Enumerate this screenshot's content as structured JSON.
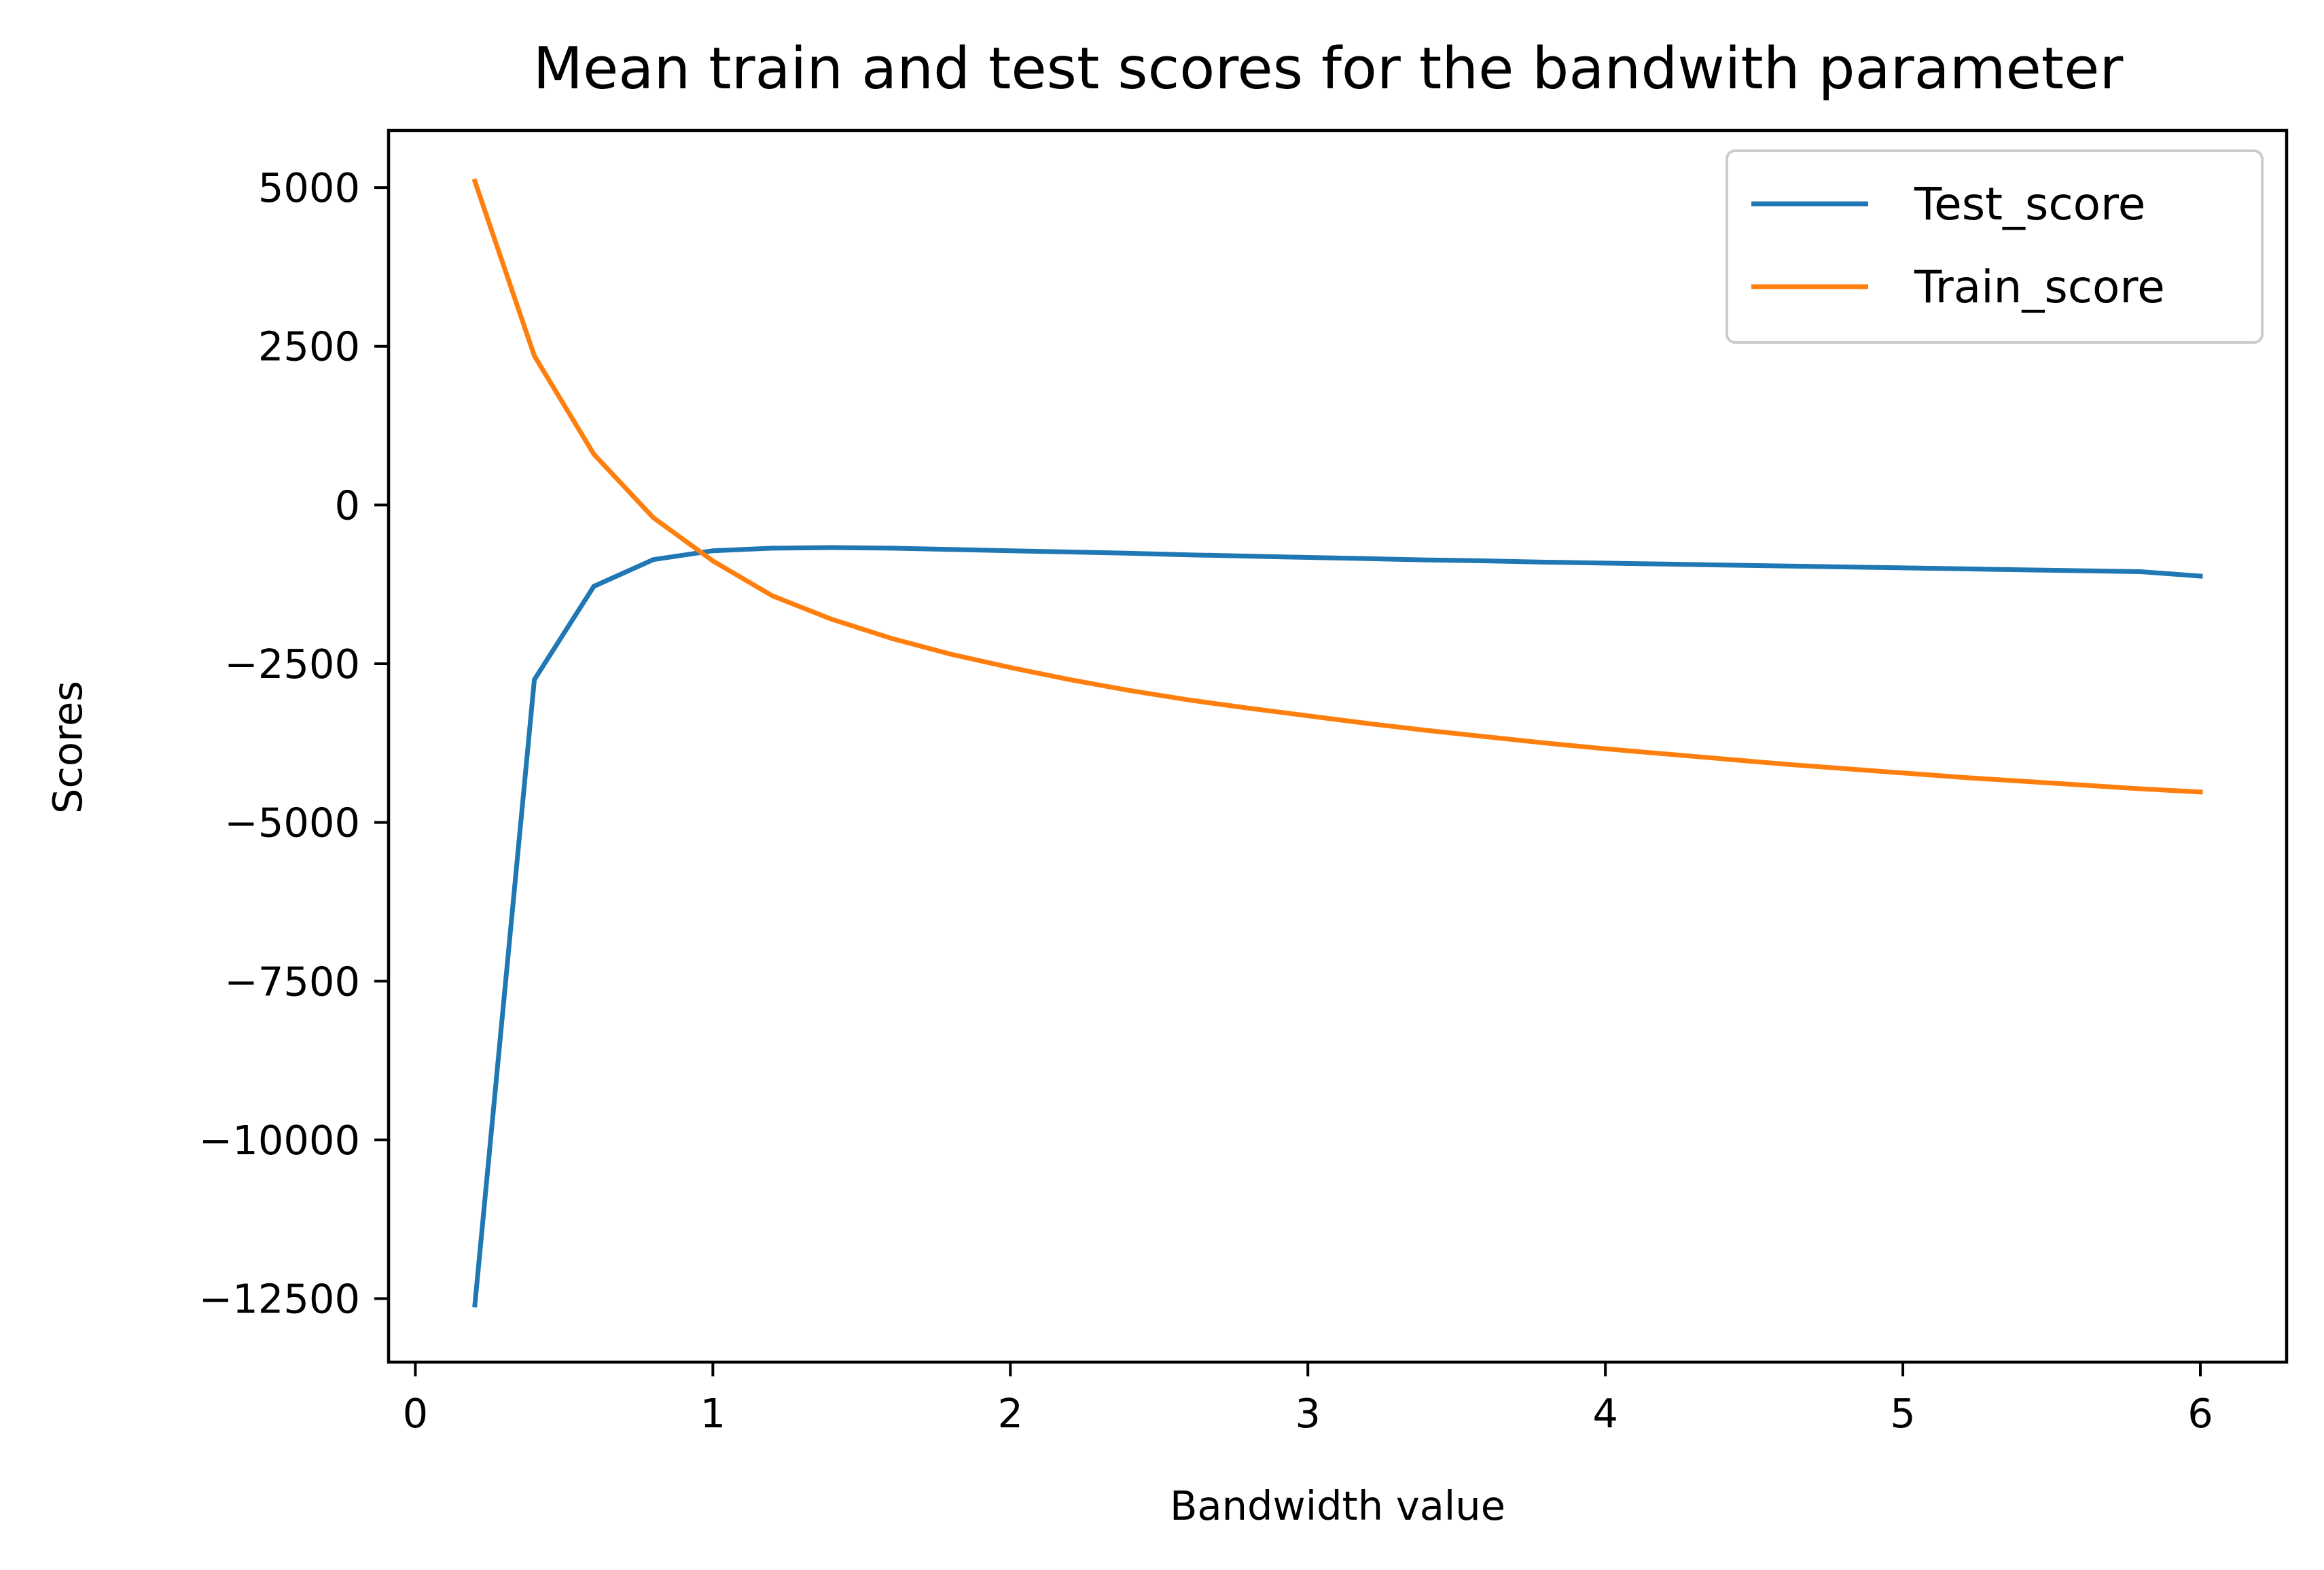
{
  "chart_data": {
    "type": "line",
    "title": "Mean train and test scores for the bandwith parameter",
    "xlabel": "Bandwidth value",
    "ylabel": "Scores",
    "xlim": [
      -0.09,
      6.29
    ],
    "ylim": [
      -13500,
      5900
    ],
    "grid": false,
    "legend_position": "top-right",
    "x": [
      0.2,
      0.4,
      0.6,
      0.8,
      1.0,
      1.2,
      1.4,
      1.6,
      1.8,
      2.0,
      2.2,
      2.4,
      2.6,
      2.8,
      3.0,
      3.2,
      3.4,
      3.6,
      3.8,
      4.0,
      4.2,
      4.4,
      4.6,
      4.8,
      5.0,
      5.2,
      5.4,
      5.6,
      5.8,
      6.0
    ],
    "series": [
      {
        "name": "Test_score",
        "color": "#1f77b4",
        "values": [
          -12600,
          -2750,
          -1280,
          -860,
          -720,
          -680,
          -670,
          -680,
          -700,
          -720,
          -740,
          -760,
          -785,
          -805,
          -825,
          -845,
          -865,
          -880,
          -900,
          -915,
          -930,
          -945,
          -960,
          -975,
          -990,
          -1005,
          -1020,
          -1035,
          -1050,
          -1120
        ]
      },
      {
        "name": "Train_score",
        "color": "#ff7f0e",
        "values": [
          5100,
          2350,
          800,
          -200,
          -880,
          -1430,
          -1800,
          -2100,
          -2350,
          -2560,
          -2750,
          -2920,
          -3070,
          -3200,
          -3320,
          -3440,
          -3550,
          -3650,
          -3750,
          -3840,
          -3920,
          -4000,
          -4080,
          -4150,
          -4220,
          -4290,
          -4350,
          -4410,
          -4470,
          -4520
        ]
      }
    ],
    "x_ticks": [
      0,
      1,
      2,
      3,
      4,
      5,
      6
    ],
    "x_tick_labels": [
      "0",
      "1",
      "2",
      "3",
      "4",
      "5",
      "6"
    ],
    "y_ticks": [
      5000,
      2500,
      0,
      -2500,
      -5000,
      -7500,
      -10000,
      -12500
    ],
    "y_tick_labels": [
      "5000",
      "2500",
      "0",
      "−2500",
      "−5000",
      "−7500",
      "−10000",
      "−12500"
    ]
  }
}
